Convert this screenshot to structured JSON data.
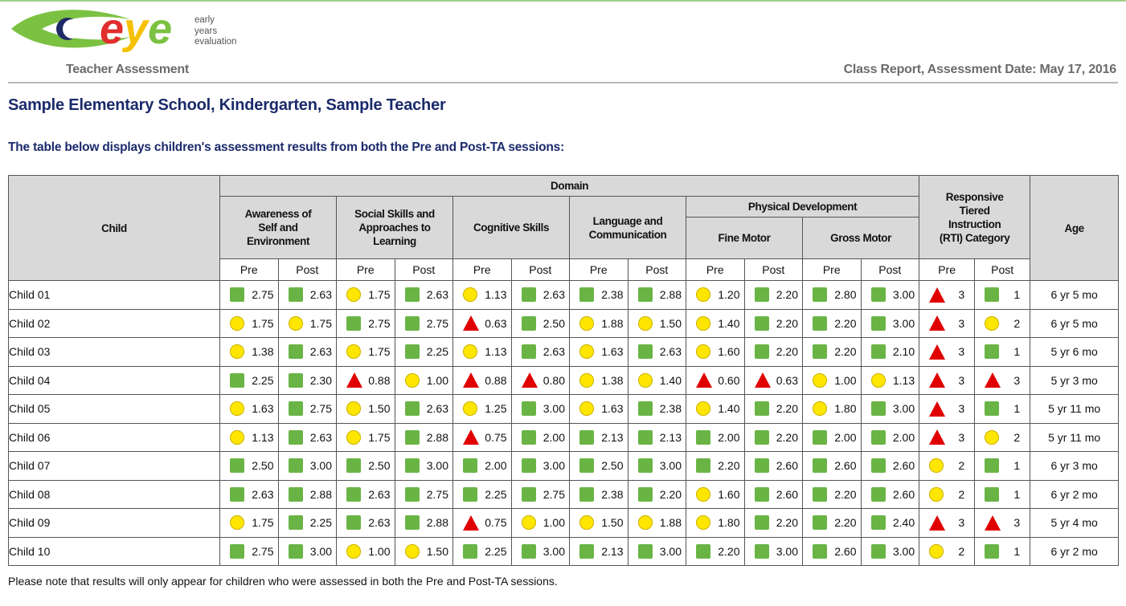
{
  "header": {
    "logo_word": "eye",
    "logo_tagline": [
      "early",
      "years",
      "evaluation"
    ],
    "left_subtitle": "Teacher Assessment",
    "right_subtitle": "Class Report, Assessment Date: May 17, 2016"
  },
  "title": "Sample Elementary School, Kindergarten, Sample Teacher",
  "intro": "The table below displays children's assessment results from both the Pre and Post-TA sessions:",
  "table": {
    "child_header": "Child",
    "domain_header": "Domain",
    "domains": [
      "Awareness of Self and Environment",
      "Social Skills and Approaches to Learning",
      "Cognitive Skills",
      "Language and Communication"
    ],
    "physical_header": "Physical Development",
    "physical_sub": [
      "Fine Motor",
      "Gross Motor"
    ],
    "rti_header": "Responsive Tiered Instruction (RTI) Category",
    "age_header": "Age",
    "pre_label": "Pre",
    "post_label": "Post",
    "rows": [
      {
        "child": "Child 01",
        "age": "6 yr 5 mo",
        "scores": [
          [
            "square",
            "2.75"
          ],
          [
            "square",
            "2.63"
          ],
          [
            "circle",
            "1.75"
          ],
          [
            "square",
            "2.63"
          ],
          [
            "circle",
            "1.13"
          ],
          [
            "square",
            "2.63"
          ],
          [
            "square",
            "2.38"
          ],
          [
            "square",
            "2.88"
          ],
          [
            "circle",
            "1.20"
          ],
          [
            "square",
            "2.20"
          ],
          [
            "square",
            "2.80"
          ],
          [
            "square",
            "3.00"
          ]
        ],
        "rti": [
          [
            "triangle",
            "3"
          ],
          [
            "square",
            "1"
          ]
        ]
      },
      {
        "child": "Child 02",
        "age": "6 yr 5 mo",
        "scores": [
          [
            "circle",
            "1.75"
          ],
          [
            "circle",
            "1.75"
          ],
          [
            "square",
            "2.75"
          ],
          [
            "square",
            "2.75"
          ],
          [
            "triangle",
            "0.63"
          ],
          [
            "square",
            "2.50"
          ],
          [
            "circle",
            "1.88"
          ],
          [
            "circle",
            "1.50"
          ],
          [
            "circle",
            "1.40"
          ],
          [
            "square",
            "2.20"
          ],
          [
            "square",
            "2.20"
          ],
          [
            "square",
            "3.00"
          ]
        ],
        "rti": [
          [
            "triangle",
            "3"
          ],
          [
            "circle",
            "2"
          ]
        ]
      },
      {
        "child": "Child 03",
        "age": "5 yr 6 mo",
        "scores": [
          [
            "circle",
            "1.38"
          ],
          [
            "square",
            "2.63"
          ],
          [
            "circle",
            "1.75"
          ],
          [
            "square",
            "2.25"
          ],
          [
            "circle",
            "1.13"
          ],
          [
            "square",
            "2.63"
          ],
          [
            "circle",
            "1.63"
          ],
          [
            "square",
            "2.63"
          ],
          [
            "circle",
            "1.60"
          ],
          [
            "square",
            "2.20"
          ],
          [
            "square",
            "2.20"
          ],
          [
            "square",
            "2.10"
          ]
        ],
        "rti": [
          [
            "triangle",
            "3"
          ],
          [
            "square",
            "1"
          ]
        ]
      },
      {
        "child": "Child 04",
        "age": "5 yr 3 mo",
        "scores": [
          [
            "square",
            "2.25"
          ],
          [
            "square",
            "2.30"
          ],
          [
            "triangle",
            "0.88"
          ],
          [
            "circle",
            "1.00"
          ],
          [
            "triangle",
            "0.88"
          ],
          [
            "triangle",
            "0.80"
          ],
          [
            "circle",
            "1.38"
          ],
          [
            "circle",
            "1.40"
          ],
          [
            "triangle",
            "0.60"
          ],
          [
            "triangle",
            "0.63"
          ],
          [
            "circle",
            "1.00"
          ],
          [
            "circle",
            "1.13"
          ]
        ],
        "rti": [
          [
            "triangle",
            "3"
          ],
          [
            "triangle",
            "3"
          ]
        ]
      },
      {
        "child": "Child 05",
        "age": "5 yr 11 mo",
        "scores": [
          [
            "circle",
            "1.63"
          ],
          [
            "square",
            "2.75"
          ],
          [
            "circle",
            "1.50"
          ],
          [
            "square",
            "2.63"
          ],
          [
            "circle",
            "1.25"
          ],
          [
            "square",
            "3.00"
          ],
          [
            "circle",
            "1.63"
          ],
          [
            "square",
            "2.38"
          ],
          [
            "circle",
            "1.40"
          ],
          [
            "square",
            "2.20"
          ],
          [
            "circle",
            "1.80"
          ],
          [
            "square",
            "3.00"
          ]
        ],
        "rti": [
          [
            "triangle",
            "3"
          ],
          [
            "square",
            "1"
          ]
        ]
      },
      {
        "child": "Child 06",
        "age": "5 yr 11 mo",
        "scores": [
          [
            "circle",
            "1.13"
          ],
          [
            "square",
            "2.63"
          ],
          [
            "circle",
            "1.75"
          ],
          [
            "square",
            "2.88"
          ],
          [
            "triangle",
            "0.75"
          ],
          [
            "square",
            "2.00"
          ],
          [
            "square",
            "2.13"
          ],
          [
            "square",
            "2.13"
          ],
          [
            "square",
            "2.00"
          ],
          [
            "square",
            "2.20"
          ],
          [
            "square",
            "2.00"
          ],
          [
            "square",
            "2.00"
          ]
        ],
        "rti": [
          [
            "triangle",
            "3"
          ],
          [
            "circle",
            "2"
          ]
        ]
      },
      {
        "child": "Child 07",
        "age": "6 yr 3 mo",
        "scores": [
          [
            "square",
            "2.50"
          ],
          [
            "square",
            "3.00"
          ],
          [
            "square",
            "2.50"
          ],
          [
            "square",
            "3.00"
          ],
          [
            "square",
            "2.00"
          ],
          [
            "square",
            "3.00"
          ],
          [
            "square",
            "2.50"
          ],
          [
            "square",
            "3.00"
          ],
          [
            "square",
            "2.20"
          ],
          [
            "square",
            "2.60"
          ],
          [
            "square",
            "2.60"
          ],
          [
            "square",
            "2.60"
          ]
        ],
        "rti": [
          [
            "circle",
            "2"
          ],
          [
            "square",
            "1"
          ]
        ]
      },
      {
        "child": "Child 08",
        "age": "6 yr 2 mo",
        "scores": [
          [
            "square",
            "2.63"
          ],
          [
            "square",
            "2.88"
          ],
          [
            "square",
            "2.63"
          ],
          [
            "square",
            "2.75"
          ],
          [
            "square",
            "2.25"
          ],
          [
            "square",
            "2.75"
          ],
          [
            "square",
            "2.38"
          ],
          [
            "square",
            "2.20"
          ],
          [
            "circle",
            "1.60"
          ],
          [
            "square",
            "2.60"
          ],
          [
            "square",
            "2.20"
          ],
          [
            "square",
            "2.60"
          ]
        ],
        "rti": [
          [
            "circle",
            "2"
          ],
          [
            "square",
            "1"
          ]
        ]
      },
      {
        "child": "Child 09",
        "age": "5 yr 4 mo",
        "scores": [
          [
            "circle",
            "1.75"
          ],
          [
            "square",
            "2.25"
          ],
          [
            "square",
            "2.63"
          ],
          [
            "square",
            "2.88"
          ],
          [
            "triangle",
            "0.75"
          ],
          [
            "circle",
            "1.00"
          ],
          [
            "circle",
            "1.50"
          ],
          [
            "circle",
            "1.88"
          ],
          [
            "circle",
            "1.80"
          ],
          [
            "square",
            "2.20"
          ],
          [
            "square",
            "2.20"
          ],
          [
            "square",
            "2.40"
          ]
        ],
        "rti": [
          [
            "triangle",
            "3"
          ],
          [
            "triangle",
            "3"
          ]
        ]
      },
      {
        "child": "Child 10",
        "age": "6 yr 2 mo",
        "scores": [
          [
            "square",
            "2.75"
          ],
          [
            "square",
            "3.00"
          ],
          [
            "circle",
            "1.00"
          ],
          [
            "circle",
            "1.50"
          ],
          [
            "square",
            "2.25"
          ],
          [
            "square",
            "3.00"
          ],
          [
            "square",
            "2.13"
          ],
          [
            "square",
            "3.00"
          ],
          [
            "square",
            "2.20"
          ],
          [
            "square",
            "3.00"
          ],
          [
            "square",
            "2.60"
          ],
          [
            "square",
            "3.00"
          ]
        ],
        "rti": [
          [
            "circle",
            "2"
          ],
          [
            "square",
            "1"
          ]
        ]
      }
    ]
  },
  "note": "Please note that results will only appear for children who were assessed in both the Pre and Post-TA sessions.",
  "colors": {
    "square": "#6ab446",
    "circle": "#ffe600",
    "triangle": "#e00000",
    "heading": "#1b2a6b",
    "header_bg": "#d9d9d9"
  }
}
